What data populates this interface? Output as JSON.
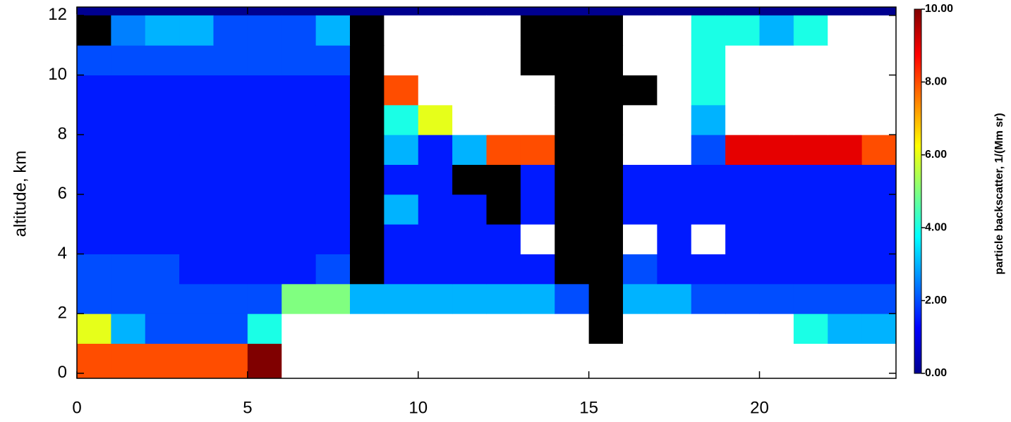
{
  "chart_data": {
    "type": "heatmap",
    "xlabel": null,
    "ylabel": "altitude, km",
    "colorbar_label": "particle backscatter, 1/(Mm sr)",
    "x_edges": [
      0,
      1,
      2,
      3,
      4,
      5,
      6,
      7,
      8,
      9,
      10,
      11,
      12,
      13,
      14,
      15,
      16,
      17,
      18,
      19,
      20,
      21,
      22,
      23,
      24
    ],
    "y_edges": [
      0,
      1,
      2,
      3,
      4,
      5,
      6,
      7,
      8,
      9,
      10,
      11,
      12
    ],
    "z": [
      [
        8,
        8,
        8,
        8,
        8,
        10,
        12,
        12,
        12,
        12,
        12,
        12,
        12,
        12,
        12,
        12,
        12,
        12,
        12,
        12,
        12,
        12,
        12,
        12
      ],
      [
        6,
        3,
        2,
        2,
        2,
        4,
        12,
        12,
        12,
        12,
        12,
        12,
        12,
        12,
        12,
        null,
        12,
        12,
        12,
        12,
        12,
        4,
        3,
        3
      ],
      [
        2,
        2,
        2,
        2,
        2,
        2,
        5,
        5,
        3,
        3,
        3,
        3,
        3,
        3,
        2,
        null,
        3,
        3,
        2,
        2,
        2,
        2,
        2,
        2
      ],
      [
        2,
        2,
        2,
        1.5,
        1.5,
        1.5,
        1.5,
        2,
        null,
        1.5,
        1.5,
        1.5,
        1.5,
        1.5,
        null,
        null,
        2,
        1.5,
        1.5,
        1.5,
        1.5,
        1.5,
        1.5,
        1.5
      ],
      [
        1.5,
        1.5,
        1.5,
        1.5,
        1.5,
        1.5,
        1.5,
        1.5,
        null,
        1.5,
        1.5,
        1.5,
        1.5,
        12,
        null,
        null,
        12,
        1.5,
        12,
        1.5,
        1.5,
        1.5,
        1.5,
        1.5
      ],
      [
        1.5,
        1.5,
        1.5,
        1.5,
        1.5,
        1.5,
        1.5,
        1.5,
        null,
        3,
        1.5,
        1.5,
        null,
        1.5,
        null,
        null,
        1.5,
        1.5,
        1.5,
        1.5,
        1.5,
        1.5,
        1.5,
        1.5
      ],
      [
        1.5,
        1.5,
        1.5,
        1.5,
        1.5,
        1.5,
        1.5,
        1.5,
        null,
        1.5,
        1.5,
        null,
        null,
        1.5,
        null,
        null,
        1.5,
        1.5,
        1.5,
        1.5,
        1.5,
        1.5,
        1.5,
        1.5
      ],
      [
        1.5,
        1.5,
        1.5,
        1.5,
        1.5,
        1.5,
        1.5,
        1.5,
        null,
        3,
        1.5,
        3,
        8,
        8,
        null,
        null,
        12,
        12,
        2,
        9,
        9,
        9,
        9,
        8
      ],
      [
        1.5,
        1.5,
        1.5,
        1.5,
        1.5,
        1.5,
        1.5,
        1.5,
        null,
        4,
        6,
        12,
        12,
        12,
        null,
        null,
        12,
        12,
        3,
        12,
        12,
        12,
        12,
        12
      ],
      [
        1.5,
        1.5,
        1.5,
        1.5,
        1.5,
        1.5,
        1.5,
        1.5,
        null,
        8,
        12,
        12,
        12,
        12,
        null,
        null,
        null,
        12,
        4,
        12,
        12,
        12,
        12,
        12
      ],
      [
        2,
        2,
        2,
        2,
        2,
        2,
        2,
        2,
        null,
        12,
        12,
        12,
        12,
        null,
        null,
        null,
        12,
        12,
        4,
        12,
        12,
        12,
        12,
        12
      ],
      [
        null,
        2.5,
        3,
        3,
        2,
        2,
        2,
        3,
        null,
        12,
        12,
        12,
        12,
        null,
        null,
        null,
        12,
        12,
        4,
        4,
        3,
        4,
        12,
        12
      ]
    ],
    "xlim": [
      0,
      24
    ],
    "ylim": [
      -0.17,
      12.28
    ],
    "xticks": [
      0,
      5,
      10,
      15,
      20
    ],
    "yticks": [
      0,
      2,
      4,
      6,
      8,
      10,
      12
    ],
    "clim": [
      0,
      10
    ],
    "colorbar_ticks": [
      {
        "value": 0,
        "label": "0.00"
      },
      {
        "value": 2,
        "label": "2.00"
      },
      {
        "value": 4,
        "label": "4.00"
      },
      {
        "value": 6,
        "label": "6.00"
      },
      {
        "value": 8,
        "label": "8.00"
      },
      {
        "value": 10,
        "label": "10.00"
      }
    ],
    "colormap": [
      "#00008f",
      "#0000ff",
      "#0080ff",
      "#00ffff",
      "#80ff80",
      "#ffff00",
      "#ff8000",
      "#ff0000",
      "#800000"
    ],
    "over_color": "#ffffff",
    "null_color": "#000000"
  }
}
